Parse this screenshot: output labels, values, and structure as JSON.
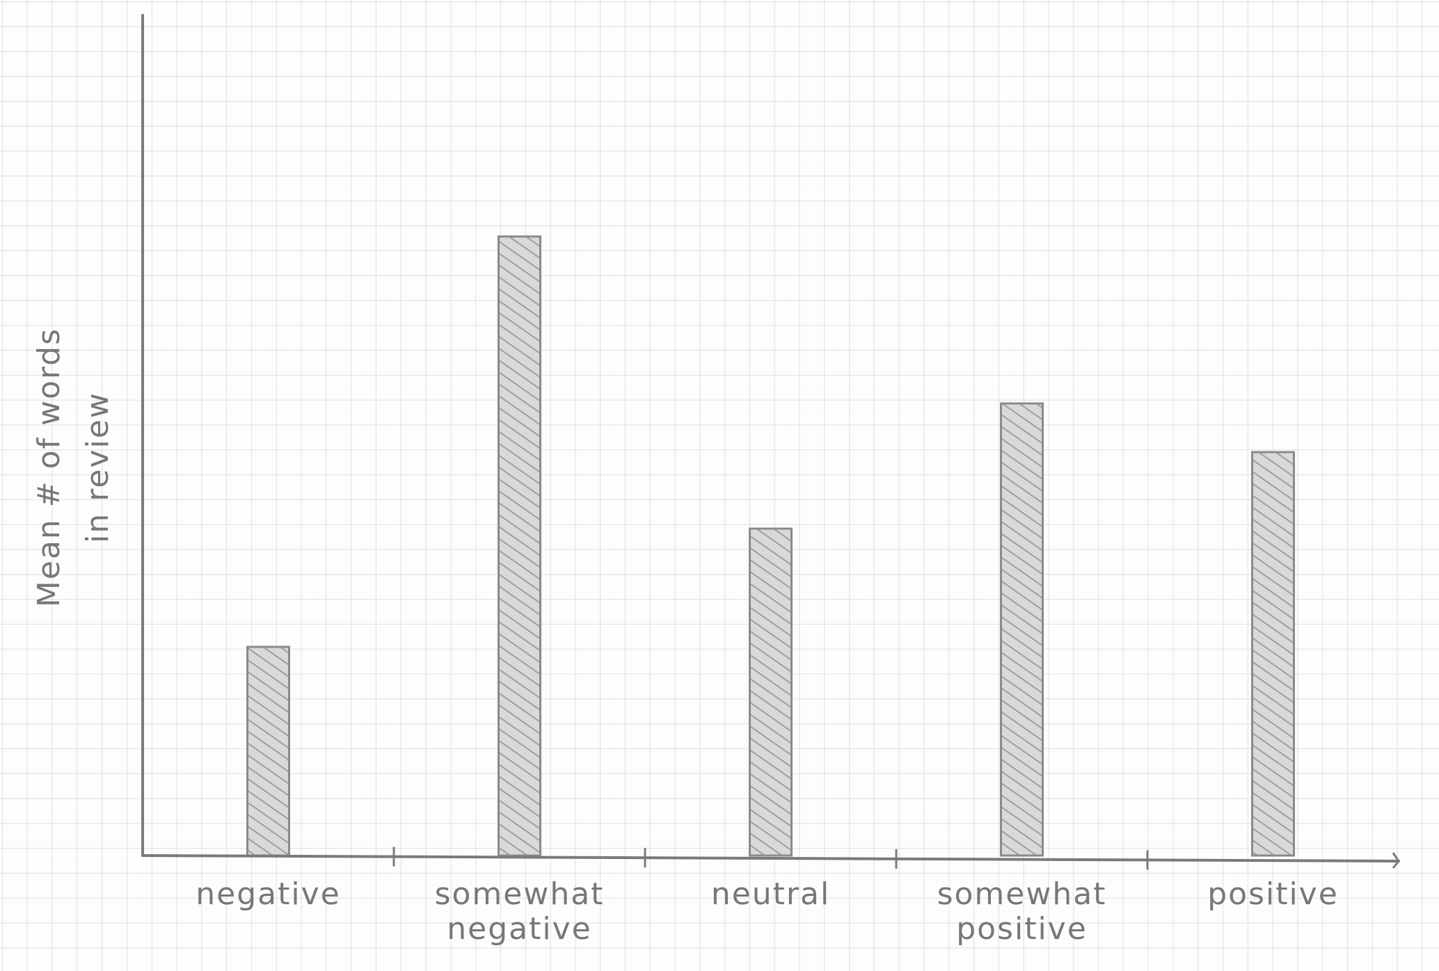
{
  "chart_data": {
    "type": "bar",
    "title": "",
    "xlabel": "",
    "ylabel": [
      "Mean # of words",
      "in review"
    ],
    "categories": [
      [
        "negative"
      ],
      [
        "somewhat",
        "negative"
      ],
      [
        "neutral"
      ],
      [
        "somewhat",
        "positive"
      ],
      [
        "positive"
      ]
    ],
    "values": [
      30,
      89,
      47,
      65,
      58
    ],
    "ylim": [
      0,
      120
    ],
    "grid": true,
    "legend": "none"
  },
  "colors": {
    "pencil": "#8a8a8a",
    "bar_fill": "#d6d6d6",
    "hatch": "#9a9a9a",
    "grid": "#b5c8da"
  }
}
